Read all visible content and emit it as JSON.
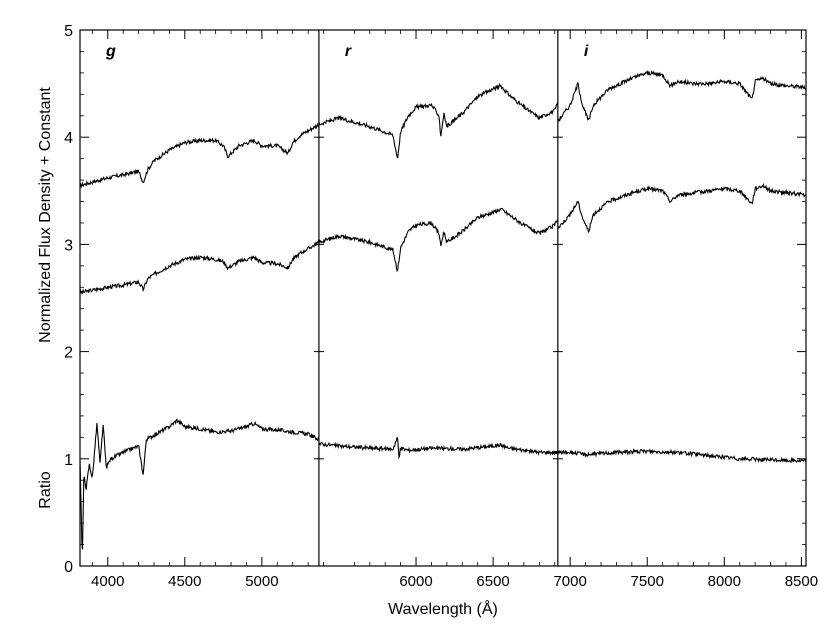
{
  "chart_data": {
    "type": "line",
    "title": "",
    "xlabel": "Wavelength (Å)",
    "ylabel_top": "Normalized Flux Density + Constant",
    "ylabel_bottom": "Ratio",
    "xlim": [
      3820,
      8530
    ],
    "ylim": [
      0,
      5
    ],
    "grid": false,
    "legend": "none",
    "line_color": "#000000",
    "xticks": [
      4000,
      4500,
      5000,
      6000,
      6500,
      7000,
      7500,
      8000,
      8500
    ],
    "xtick_labels": [
      "4000",
      "4500",
      "5000",
      "6000",
      "6500",
      "7000",
      "7500",
      "8000",
      "8500"
    ],
    "yticks": [
      0,
      1,
      2,
      3,
      4,
      5
    ],
    "ytick_labels": [
      "0",
      "1",
      "2",
      "3",
      "4",
      "5"
    ],
    "panel_dividers": [
      5370,
      6920
    ],
    "panels": [
      {
        "label": "g",
        "x_range": [
          3820,
          5370
        ],
        "series": [
          {
            "x": [
              3820,
              4000,
              4100,
              4200,
              4230,
              4260,
              4300,
              4400,
              4500,
              4600,
              4700,
              4750,
              4780,
              4850,
              4950,
              5000,
              5100,
              5170,
              5200,
              5250,
              5300,
              5370
            ],
            "y": [
              3.55,
              3.62,
              3.65,
              3.68,
              3.58,
              3.7,
              3.78,
              3.88,
              3.95,
              3.97,
              3.97,
              3.92,
              3.82,
              3.92,
              3.97,
              3.92,
              3.92,
              3.85,
              3.95,
              4.02,
              4.06,
              4.12
            ]
          },
          {
            "x": [
              3820,
              4000,
              4100,
              4200,
              4230,
              4260,
              4300,
              4400,
              4500,
              4600,
              4700,
              4750,
              4780,
              4850,
              4950,
              5000,
              5100,
              5170,
              5200,
              5250,
              5300,
              5370
            ],
            "y": [
              2.55,
              2.6,
              2.62,
              2.65,
              2.58,
              2.68,
              2.72,
              2.8,
              2.86,
              2.88,
              2.86,
              2.84,
              2.78,
              2.84,
              2.88,
              2.83,
              2.82,
              2.78,
              2.86,
              2.92,
              2.96,
              3.02
            ]
          },
          {
            "x": [
              3820,
              3835,
              3845,
              3860,
              3880,
              3900,
              3930,
              3950,
              3970,
              3990,
              4020,
              4100,
              4200,
              4230,
              4250,
              4300,
              4400,
              4450,
              4500,
              4600,
              4700,
              4800,
              4900,
              4950,
              5000,
              5100,
              5200,
              5300,
              5370
            ],
            "y": [
              1.0,
              0.05,
              0.85,
              0.72,
              0.95,
              0.82,
              1.33,
              0.95,
              1.32,
              0.92,
              1.0,
              1.06,
              1.12,
              0.85,
              1.18,
              1.22,
              1.3,
              1.36,
              1.3,
              1.28,
              1.25,
              1.26,
              1.3,
              1.33,
              1.28,
              1.27,
              1.25,
              1.23,
              1.18
            ]
          }
        ]
      },
      {
        "label": "r",
        "x_range": [
          5370,
          6920
        ],
        "series": [
          {
            "x": [
              5370,
              5500,
              5700,
              5850,
              5880,
              5900,
              5950,
              6000,
              6100,
              6150,
              6160,
              6180,
              6200,
              6300,
              6400,
              6500,
              6550,
              6600,
              6700,
              6800,
              6900,
              6920
            ],
            "y": [
              4.12,
              4.18,
              4.1,
              4.02,
              3.8,
              4.05,
              4.2,
              4.28,
              4.3,
              4.2,
              4.0,
              4.22,
              4.1,
              4.22,
              4.38,
              4.45,
              4.48,
              4.4,
              4.28,
              4.18,
              4.25,
              4.32
            ]
          },
          {
            "x": [
              5370,
              5500,
              5700,
              5850,
              5880,
              5900,
              5950,
              6000,
              6100,
              6150,
              6160,
              6180,
              6200,
              6300,
              6400,
              6500,
              6550,
              6600,
              6700,
              6800,
              6900,
              6920
            ],
            "y": [
              3.02,
              3.08,
              3.02,
              2.95,
              2.75,
              2.97,
              3.12,
              3.18,
              3.2,
              3.1,
              2.98,
              3.12,
              3.02,
              3.12,
              3.25,
              3.3,
              3.33,
              3.28,
              3.18,
              3.1,
              3.18,
              3.25
            ]
          },
          {
            "x": [
              5370,
              5500,
              5700,
              5850,
              5880,
              5890,
              5900,
              5950,
              6100,
              6300,
              6500,
              6550,
              6600,
              6700,
              6800,
              6920
            ],
            "y": [
              1.14,
              1.12,
              1.1,
              1.09,
              1.2,
              1.0,
              1.1,
              1.08,
              1.1,
              1.09,
              1.12,
              1.13,
              1.1,
              1.08,
              1.06,
              1.06
            ]
          }
        ]
      },
      {
        "label": "i",
        "x_range": [
          6920,
          8530
        ],
        "series": [
          {
            "x": [
              6920,
              7000,
              7050,
              7080,
              7120,
              7150,
              7250,
              7400,
              7500,
              7600,
              7650,
              7700,
              7800,
              7900,
              8000,
              8100,
              8180,
              8200,
              8250,
              8300,
              8400,
              8500,
              8530
            ],
            "y": [
              4.15,
              4.3,
              4.5,
              4.3,
              4.15,
              4.3,
              4.45,
              4.55,
              4.6,
              4.58,
              4.48,
              4.52,
              4.5,
              4.5,
              4.52,
              4.5,
              4.35,
              4.52,
              4.55,
              4.5,
              4.48,
              4.47,
              4.45
            ]
          },
          {
            "x": [
              6920,
              7000,
              7050,
              7080,
              7120,
              7150,
              7250,
              7400,
              7500,
              7600,
              7650,
              7700,
              7800,
              7900,
              8000,
              8100,
              8180,
              8200,
              8250,
              8300,
              8400,
              8500,
              8530
            ],
            "y": [
              3.15,
              3.28,
              3.4,
              3.25,
              3.12,
              3.28,
              3.4,
              3.48,
              3.52,
              3.5,
              3.4,
              3.46,
              3.48,
              3.5,
              3.52,
              3.5,
              3.38,
              3.52,
              3.55,
              3.5,
              3.48,
              3.47,
              3.45
            ]
          },
          {
            "x": [
              6920,
              7000,
              7100,
              7300,
              7500,
              7700,
              7900,
              8100,
              8300,
              8530
            ],
            "y": [
              1.06,
              1.06,
              1.04,
              1.06,
              1.07,
              1.06,
              1.03,
              1.0,
              0.99,
              0.98
            ]
          }
        ]
      }
    ]
  }
}
